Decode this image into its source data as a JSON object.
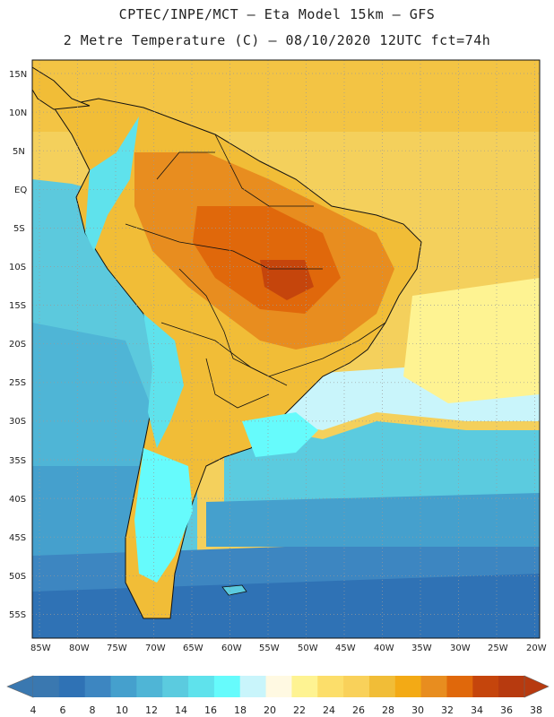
{
  "header": {
    "title_line1": "CPTEC/INPE/MCT –  Eta Model 15km – GFS",
    "title_line2": "2 Metre Temperature (C) – 08/10/2020 12UTC fct=74h"
  },
  "map": {
    "lat_labels": [
      "15N",
      "10N",
      "5N",
      "EQ",
      "5S",
      "10S",
      "15S",
      "20S",
      "25S",
      "30S",
      "35S",
      "40S",
      "45S",
      "50S",
      "55S"
    ],
    "lon_labels": [
      "85W",
      "80W",
      "75W",
      "70W",
      "65W",
      "60W",
      "55W",
      "50W",
      "45W",
      "40W",
      "35W",
      "30W",
      "25W",
      "20W"
    ]
  },
  "colorbar": {
    "labels": [
      "4",
      "6",
      "8",
      "10",
      "12",
      "14",
      "16",
      "18",
      "20",
      "22",
      "24",
      "26",
      "28",
      "30",
      "32",
      "34",
      "36",
      "38"
    ],
    "colors": [
      "#3a78b0",
      "#2f72b5",
      "#3d86c1",
      "#45a0cd",
      "#4fb5d6",
      "#5bcbdf",
      "#5fe2ec",
      "#66fbfc",
      "#c9f5fb",
      "#fff9e2",
      "#fef392",
      "#fcde6a",
      "#f9d15a",
      "#f1bd37",
      "#f3aa15",
      "#e88d1f",
      "#e0680b",
      "#c5450c",
      "#b73a0f"
    ]
  }
}
